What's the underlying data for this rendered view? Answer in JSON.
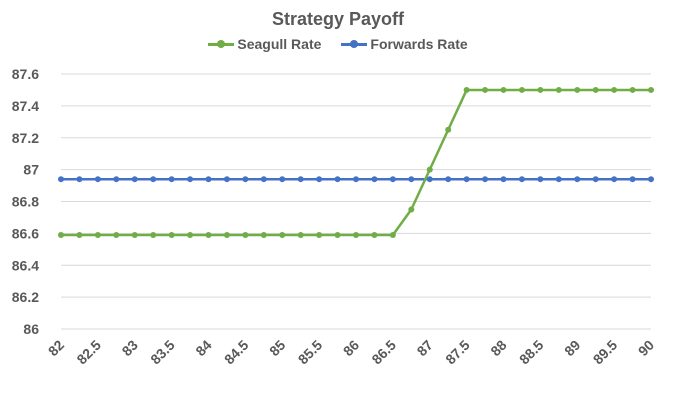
{
  "chart_data": {
    "type": "line",
    "title": "Strategy Payoff",
    "xlabel": "",
    "ylabel": "",
    "x": [
      82,
      82.25,
      82.5,
      82.75,
      83,
      83.25,
      83.5,
      83.75,
      84,
      84.25,
      84.5,
      84.75,
      85,
      85.25,
      85.5,
      85.75,
      86,
      86.25,
      86.5,
      86.75,
      87,
      87.25,
      87.5,
      87.75,
      88,
      88.25,
      88.5,
      88.75,
      89,
      89.25,
      89.5,
      89.75,
      90
    ],
    "x_tick_labels": [
      "82",
      "82.5",
      "83",
      "83.5",
      "84",
      "84.5",
      "85",
      "85.5",
      "86",
      "86.5",
      "87",
      "87.5",
      "88",
      "88.5",
      "89",
      "89.5",
      "90"
    ],
    "y_tick_labels": [
      "86",
      "86.2",
      "86.4",
      "86.6",
      "86.8",
      "87",
      "87.2",
      "87.4",
      "87.6"
    ],
    "ylim": [
      86,
      87.6
    ],
    "grid": "horizontal",
    "legend_position": "top",
    "series": [
      {
        "name": "Seagull Rate",
        "color": "#70ad47",
        "values": [
          86.59,
          86.59,
          86.59,
          86.59,
          86.59,
          86.59,
          86.59,
          86.59,
          86.59,
          86.59,
          86.59,
          86.59,
          86.59,
          86.59,
          86.59,
          86.59,
          86.59,
          86.59,
          86.59,
          86.75,
          87.0,
          87.25,
          87.5,
          87.5,
          87.5,
          87.5,
          87.5,
          87.5,
          87.5,
          87.5,
          87.5,
          87.5,
          87.5
        ]
      },
      {
        "name": "Forwards Rate",
        "color": "#4472c4",
        "values": [
          86.94,
          86.94,
          86.94,
          86.94,
          86.94,
          86.94,
          86.94,
          86.94,
          86.94,
          86.94,
          86.94,
          86.94,
          86.94,
          86.94,
          86.94,
          86.94,
          86.94,
          86.94,
          86.94,
          86.94,
          86.94,
          86.94,
          86.94,
          86.94,
          86.94,
          86.94,
          86.94,
          86.94,
          86.94,
          86.94,
          86.94,
          86.94,
          86.94
        ]
      }
    ]
  }
}
